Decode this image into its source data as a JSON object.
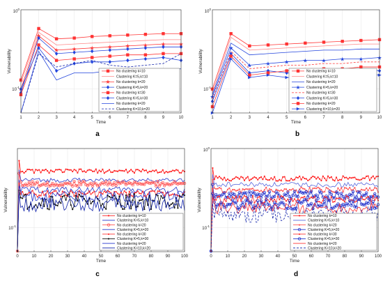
{
  "panel_labels": [
    "a",
    "b",
    "c",
    "d"
  ],
  "chart_data": [
    {
      "panel": "a",
      "type": "line",
      "xlabel": "Time",
      "ylabel": "Vulnerability",
      "yscale": "log",
      "xlim": [
        1,
        10
      ],
      "ylim": [
        0.05,
        1
      ],
      "xticks": [
        1,
        2,
        3,
        4,
        5,
        6,
        7,
        8,
        9,
        10
      ],
      "ytick_labels": [
        "10^0",
        "10^-1"
      ],
      "grid": true,
      "legend_position": "lower-right",
      "series": [
        {
          "name": "No clustering k=10",
          "color": "#ff3333",
          "marker": "square",
          "dash": false,
          "x": [
            1,
            2,
            3,
            4,
            5,
            6,
            7,
            8,
            9,
            10
          ],
          "y": [
            0.13,
            0.58,
            0.43,
            0.44,
            0.46,
            0.47,
            0.48,
            0.49,
            0.5,
            0.5
          ]
        },
        {
          "name": "Clustering K=5,k=10",
          "color": "#ff8888",
          "marker": "none",
          "dash": false,
          "x": [
            1,
            2,
            3,
            4,
            5,
            6,
            7,
            8,
            9,
            10
          ],
          "y": [
            0.12,
            0.52,
            0.36,
            0.37,
            0.38,
            0.39,
            0.4,
            0.41,
            0.42,
            0.42
          ]
        },
        {
          "name": "No clustering k=20",
          "color": "#ff3333",
          "marker": "star",
          "dash": false,
          "x": [
            1,
            2,
            3,
            4,
            5,
            6,
            7,
            8,
            9,
            10
          ],
          "y": [
            0.1,
            0.47,
            0.31,
            0.32,
            0.33,
            0.34,
            0.35,
            0.36,
            0.37,
            0.37
          ]
        },
        {
          "name": "Clustering K=5,k=20",
          "color": "#2244dd",
          "marker": "diamond",
          "dash": false,
          "x": [
            1,
            2,
            3,
            4,
            5,
            6,
            7,
            8,
            9,
            10
          ],
          "y": [
            0.09,
            0.44,
            0.28,
            0.29,
            0.3,
            0.31,
            0.32,
            0.33,
            0.34,
            0.34
          ]
        },
        {
          "name": "No clustering k=30",
          "color": "#ff3333",
          "marker": "square",
          "dash": false,
          "x": [
            1,
            2,
            3,
            4,
            5,
            6,
            7,
            8,
            9,
            10
          ],
          "y": [
            0.085,
            0.36,
            0.23,
            0.24,
            0.25,
            0.26,
            0.27,
            0.27,
            0.28,
            0.28
          ]
        },
        {
          "name": "Clustering K=5,k=30",
          "color": "#2244dd",
          "marker": "diamond",
          "dash": false,
          "x": [
            1,
            2,
            3,
            4,
            5,
            6,
            7,
            8,
            9,
            10
          ],
          "y": [
            0.1,
            0.33,
            0.17,
            0.21,
            0.22,
            0.22,
            0.23,
            0.24,
            0.25,
            0.23
          ]
        },
        {
          "name": "No clustering k=20",
          "color": "#2244dd",
          "marker": "none",
          "dash": false,
          "x": [
            1,
            2,
            3,
            4,
            5,
            6,
            7,
            8,
            9,
            10
          ],
          "y": [
            0.05,
            0.3,
            0.13,
            0.16,
            0.16,
            0.17,
            0.17,
            0.17,
            0.18,
            0.18
          ]
        },
        {
          "name": "Clustering K=10,k=20",
          "color": "#1122aa",
          "marker": "none",
          "dash": true,
          "x": [
            1,
            2,
            3,
            4,
            5,
            6,
            7,
            8,
            9,
            10
          ],
          "y": [
            0.05,
            0.28,
            0.19,
            0.21,
            0.23,
            0.2,
            0.19,
            0.2,
            0.21,
            0.28
          ]
        }
      ]
    },
    {
      "panel": "b",
      "type": "line",
      "xlabel": "Time",
      "ylabel": "Vulnerability",
      "yscale": "log",
      "xlim": [
        1,
        10
      ],
      "ylim": [
        0.05,
        1
      ],
      "xticks": [
        1,
        2,
        3,
        4,
        5,
        6,
        7,
        8,
        9,
        10
      ],
      "ytick_labels": [
        "10^0",
        "10^-1"
      ],
      "grid": true,
      "legend_position": "lower-right",
      "series": [
        {
          "name": "No clustering k=10",
          "color": "#ff3333",
          "marker": "square",
          "dash": false,
          "x": [
            1,
            2,
            3,
            4,
            5,
            6,
            7,
            8,
            9,
            10
          ],
          "y": [
            0.1,
            0.5,
            0.35,
            0.36,
            0.37,
            0.38,
            0.39,
            0.4,
            0.41,
            0.42
          ]
        },
        {
          "name": "Clustering K=5,k=10",
          "color": "#ff8888",
          "marker": "none",
          "dash": false,
          "x": [
            1,
            2,
            3,
            4,
            5,
            6,
            7,
            8,
            9,
            10
          ],
          "y": [
            0.09,
            0.45,
            0.31,
            0.32,
            0.33,
            0.34,
            0.35,
            0.36,
            0.37,
            0.37
          ]
        },
        {
          "name": "No clustering k=20",
          "color": "#2244dd",
          "marker": "none",
          "dash": false,
          "x": [
            1,
            2,
            3,
            4,
            5,
            6,
            7,
            8,
            9,
            10
          ],
          "y": [
            0.085,
            0.38,
            0.27,
            0.28,
            0.29,
            0.3,
            0.31,
            0.31,
            0.32,
            0.32
          ]
        },
        {
          "name": "Clustering K=5,k=20",
          "color": "#2244dd",
          "marker": "star",
          "dash": false,
          "x": [
            1,
            2,
            3,
            4,
            5,
            6,
            7,
            8,
            9,
            10
          ],
          "y": [
            0.08,
            0.33,
            0.2,
            0.21,
            0.22,
            0.23,
            0.23,
            0.24,
            0.24,
            0.25
          ]
        },
        {
          "name": "No clustering k=30",
          "color": "#ff3333",
          "marker": "none",
          "dash": true,
          "x": [
            1,
            2,
            3,
            4,
            5,
            6,
            7,
            8,
            9,
            10
          ],
          "y": [
            0.075,
            0.3,
            0.18,
            0.19,
            0.2,
            0.2,
            0.21,
            0.21,
            0.22,
            0.22
          ]
        },
        {
          "name": "Clustering K=5,k=30",
          "color": "#2244dd",
          "marker": "diamond",
          "dash": false,
          "x": [
            1,
            2,
            3,
            4,
            5,
            6,
            7,
            8,
            9,
            10
          ],
          "y": [
            0.07,
            0.28,
            0.16,
            0.17,
            0.16,
            0.15,
            0.16,
            0.17,
            0.18,
            0.17
          ]
        },
        {
          "name": "No clustering k=20",
          "color": "#ff3333",
          "marker": "square",
          "dash": false,
          "x": [
            1,
            2,
            3,
            4,
            5,
            6,
            7,
            8,
            9,
            10
          ],
          "y": [
            0.06,
            0.26,
            0.15,
            0.16,
            0.17,
            0.17,
            0.18,
            0.18,
            0.19,
            0.19
          ]
        },
        {
          "name": "Clustering K=10,k=20",
          "color": "#2244dd",
          "marker": "triangle",
          "dash": false,
          "x": [
            1,
            2,
            3,
            4,
            5,
            6,
            7,
            8,
            9,
            10
          ],
          "y": [
            0.05,
            0.24,
            0.14,
            0.15,
            0.14,
            0.14,
            0.15,
            0.16,
            0.16,
            0.15
          ]
        }
      ]
    },
    {
      "panel": "c",
      "type": "line",
      "xlabel": "Time",
      "ylabel": "Vulnerability",
      "yscale": "log",
      "xlim": [
        0,
        100
      ],
      "ylim": [
        0.05,
        1
      ],
      "xticks": [
        0,
        10,
        20,
        30,
        40,
        50,
        60,
        70,
        80,
        90,
        100
      ],
      "ytick_labels": [
        "10^-1"
      ],
      "grid": true,
      "legend_position": "lower-right",
      "series": [
        {
          "name": "No clustering k=10",
          "color": "#ff2222",
          "marker": "dot",
          "dash": false,
          "base": 0.52,
          "noise": 0.03
        },
        {
          "name": "Clustering K=5,k=10",
          "color": "#2233cc",
          "marker": "none",
          "dash": false,
          "base": 0.4,
          "noise": 0.025
        },
        {
          "name": "No clustering k=20",
          "color": "#ff5555",
          "marker": "circle",
          "dash": false,
          "base": 0.36,
          "noise": 0.025
        },
        {
          "name": "Clustering K=5,k=20",
          "color": "#2233cc",
          "marker": "none",
          "dash": false,
          "base": 0.3,
          "noise": 0.03
        },
        {
          "name": "No clustering k=30",
          "color": "#ff3333",
          "marker": "dot",
          "dash": false,
          "base": 0.27,
          "noise": 0.025
        },
        {
          "name": "Clustering K=5,k=30",
          "color": "#111111",
          "marker": "dot",
          "dash": false,
          "base": 0.22,
          "noise": 0.05
        },
        {
          "name": "No clustering k=20",
          "color": "#2233cc",
          "marker": "none",
          "dash": false,
          "base": 0.25,
          "noise": 0.04
        },
        {
          "name": "Clustering K=10,k=20",
          "color": "#1122aa",
          "marker": "none",
          "dash": false,
          "base": 0.2,
          "noise": 0.04
        }
      ]
    },
    {
      "panel": "d",
      "type": "line",
      "xlabel": "Time",
      "ylabel": "Vulnerability",
      "yscale": "log",
      "xlim": [
        0,
        100
      ],
      "ylim": [
        0.05,
        1
      ],
      "xticks": [
        0,
        10,
        20,
        30,
        40,
        50,
        60,
        70,
        80,
        90,
        100
      ],
      "ytick_labels": [
        "10^0",
        "10^-1"
      ],
      "grid": true,
      "legend_position": "lower-right",
      "series": [
        {
          "name": "No clustering k=10",
          "color": "#ff2222",
          "marker": "dot",
          "dash": false,
          "base": 0.42,
          "noise": 0.03
        },
        {
          "name": "Clustering K=5,k=10",
          "color": "#5566dd",
          "marker": "none",
          "dash": false,
          "base": 0.35,
          "noise": 0.025
        },
        {
          "name": "No clustering k=20",
          "color": "#ff5555",
          "marker": "dot",
          "dash": false,
          "base": 0.3,
          "noise": 0.025
        },
        {
          "name": "Clustering K=5,k=20",
          "color": "#2233cc",
          "marker": "circle",
          "dash": false,
          "base": 0.26,
          "noise": 0.03
        },
        {
          "name": "No clustering k=30",
          "color": "#ff3333",
          "marker": "dot",
          "dash": false,
          "base": 0.23,
          "noise": 0.025
        },
        {
          "name": "Clustering K=5,k=30",
          "color": "#2233cc",
          "marker": "circle",
          "dash": false,
          "base": 0.2,
          "noise": 0.03
        },
        {
          "name": "No clustering k=20",
          "color": "#ff3333",
          "marker": "none",
          "dash": false,
          "base": 0.18,
          "noise": 0.03
        },
        {
          "name": "Clustering K=10,k=20",
          "color": "#1122aa",
          "marker": "none",
          "dash": true,
          "base": 0.15,
          "noise": 0.035
        }
      ]
    }
  ]
}
